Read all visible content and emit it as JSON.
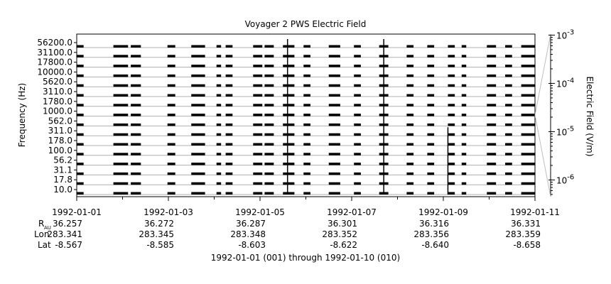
{
  "chart_data": {
    "type": "line",
    "title": "Voyager 2 PWS Electric Field",
    "xlabel": "1992-01-01 (001) through 1992-01-10 (010)",
    "ylabel": "Frequency (Hz)",
    "y2label": "Electric Field (V/m)",
    "x_ticks": [
      "1992-01-01",
      "1992-01-03",
      "1992-01-05",
      "1992-01-07",
      "1992-01-09",
      "1992-01-11"
    ],
    "x_range": [
      "1992-01-01",
      "1992-01-11"
    ],
    "channels": [
      "10.0",
      "17.8",
      "31.1",
      "56.2",
      "100.0",
      "178.0",
      "311.0",
      "562.0",
      "1000.0",
      "1780.0",
      "3110.0",
      "5620.0",
      "10000.0",
      "17800.0",
      "31100.0",
      "56200.0"
    ],
    "y2_ticks": [
      {
        "base": "10",
        "exp": "-6",
        "value": 1e-06
      },
      {
        "base": "10",
        "exp": "-5",
        "value": 1e-05
      },
      {
        "base": "10",
        "exp": "-4",
        "value": 0.0001
      },
      {
        "base": "10",
        "exp": "-3",
        "value": 0.001
      }
    ],
    "y2_range": [
      4.5e-07,
      0.00105
    ],
    "y2_scale": "log",
    "ephemeris": {
      "labels": {
        "r": "R",
        "r_sub": "AU",
        "lon": "Lon",
        "lat": "Lat"
      },
      "columns": [
        {
          "r": "36.257",
          "lon": "283.341",
          "lat": "-8.567"
        },
        {
          "r": "36.272",
          "lon": "283.345",
          "lat": "-8.585"
        },
        {
          "r": "36.287",
          "lon": "283.348",
          "lat": "-8.603"
        },
        {
          "r": "36.301",
          "lon": "283.352",
          "lat": "-8.622"
        },
        {
          "r": "36.316",
          "lon": "283.356",
          "lat": "-8.640"
        },
        {
          "r": "36.331",
          "lon": "283.359",
          "lat": "-8.658"
        }
      ]
    },
    "data_segments_days": [
      [
        0.0,
        0.15
      ],
      [
        0.8,
        1.12
      ],
      [
        1.18,
        1.4
      ],
      [
        1.98,
        2.15
      ],
      [
        2.5,
        2.8
      ],
      [
        3.05,
        3.15
      ],
      [
        3.25,
        3.4
      ],
      [
        3.85,
        4.05
      ],
      [
        4.1,
        4.3
      ],
      [
        4.5,
        4.75
      ],
      [
        4.95,
        5.1
      ],
      [
        5.5,
        5.75
      ],
      [
        6.05,
        6.2
      ],
      [
        6.6,
        6.8
      ],
      [
        7.2,
        7.35
      ],
      [
        7.65,
        7.8
      ],
      [
        8.1,
        8.25
      ],
      [
        8.4,
        8.5
      ],
      [
        8.95,
        9.15
      ],
      [
        9.35,
        9.5
      ],
      [
        9.7,
        10.0
      ]
    ],
    "spikes_days": [
      {
        "day": 4.6,
        "top_channel": "56200.0"
      },
      {
        "day": 6.7,
        "top_channel": "56200.0"
      },
      {
        "day": 8.1,
        "top_channel": "311.0"
      }
    ],
    "grid": false,
    "legend": "none"
  }
}
